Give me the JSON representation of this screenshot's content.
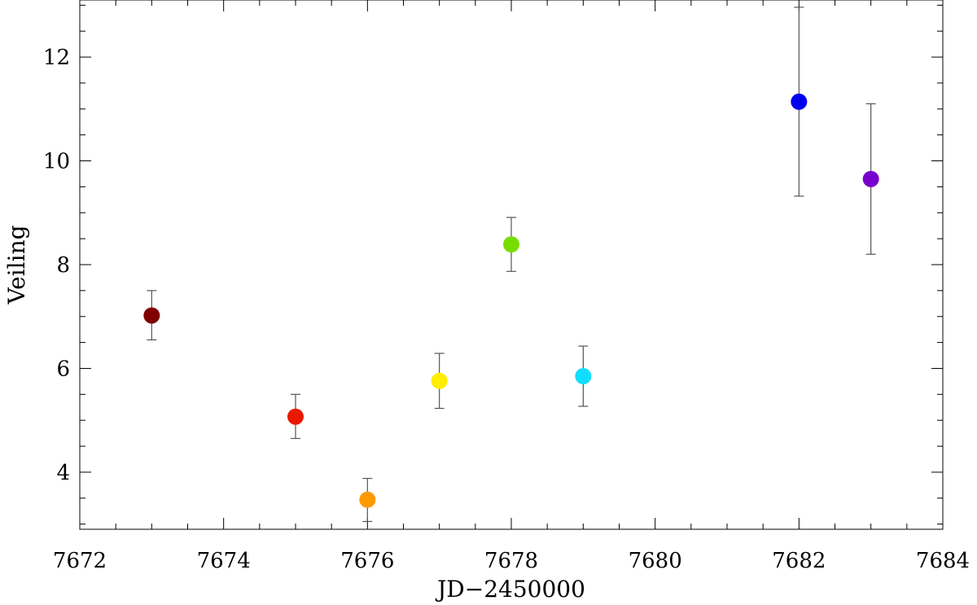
{
  "chart_data": {
    "type": "scatter",
    "title": "",
    "xlabel": "JD−2450000",
    "ylabel": "Veiling",
    "xlim": [
      7672,
      7684
    ],
    "ylim": [
      2.9,
      13.1
    ],
    "xticks": [
      7672,
      7674,
      7676,
      7678,
      7680,
      7682,
      7684
    ],
    "yticks": [
      4,
      6,
      8,
      10,
      12
    ],
    "grid": false,
    "legend": "none",
    "points": [
      {
        "x": 7673,
        "y": 7.02,
        "err_low": 6.55,
        "err_high": 7.5,
        "color": "#800000"
      },
      {
        "x": 7675,
        "y": 5.07,
        "err_low": 4.65,
        "err_high": 5.5,
        "color": "#e81900"
      },
      {
        "x": 7676,
        "y": 3.47,
        "err_low": 3.05,
        "err_high": 3.88,
        "color": "#ff9900"
      },
      {
        "x": 7677,
        "y": 5.76,
        "err_low": 5.23,
        "err_high": 6.29,
        "color": "#ffee00"
      },
      {
        "x": 7678,
        "y": 8.39,
        "err_low": 7.87,
        "err_high": 8.91,
        "color": "#77dd00"
      },
      {
        "x": 7679,
        "y": 5.85,
        "err_low": 5.27,
        "err_high": 6.43,
        "color": "#11ddff"
      },
      {
        "x": 7682,
        "y": 11.14,
        "err_low": 9.32,
        "err_high": 12.96,
        "color": "#0000ee"
      },
      {
        "x": 7683,
        "y": 9.65,
        "err_low": 8.2,
        "err_high": 11.1,
        "color": "#7700cc"
      }
    ]
  }
}
